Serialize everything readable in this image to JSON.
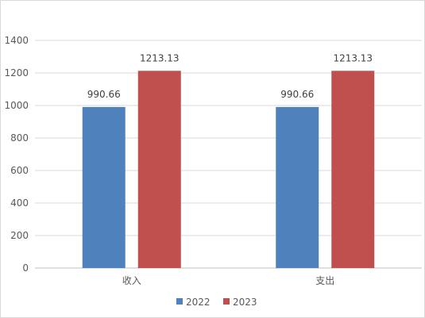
{
  "chart_data": {
    "type": "bar",
    "categories": [
      "收入",
      "支出"
    ],
    "series": [
      {
        "name": "2022",
        "values": [
          990.66,
          990.66
        ],
        "color": "#4f81bd"
      },
      {
        "name": "2023",
        "values": [
          1213.13,
          1213.13
        ],
        "color": "#c0504d"
      }
    ],
    "ylim": [
      0,
      1400
    ],
    "yticks": [
      0,
      200,
      400,
      600,
      800,
      1000,
      1200,
      1400
    ],
    "grid": true,
    "legend_position": "bottom",
    "data_labels": [
      [
        "990.66",
        "990.66"
      ],
      [
        "1213.13",
        "1213.13"
      ]
    ]
  }
}
